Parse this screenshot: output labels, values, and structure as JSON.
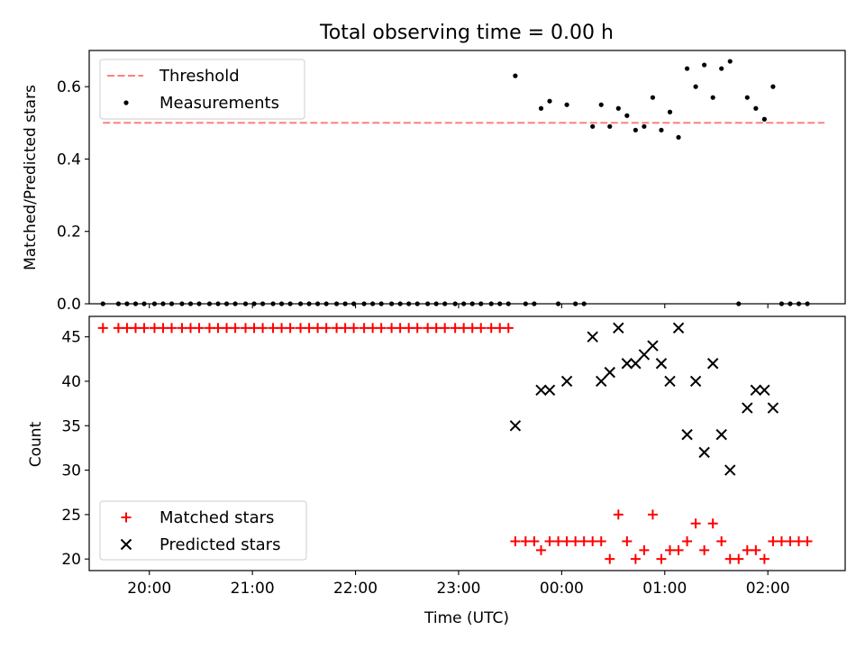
{
  "chart_data": [
    {
      "type": "scatter",
      "title": "Total observing time = 0.00 h",
      "xlabel": "",
      "ylabel": "Matched/Predicted stars",
      "x_unit": "time (UTC, hours; values >= 24 are after midnight)",
      "xlim": [
        "19:25",
        "02:45"
      ],
      "ylim": [
        0,
        0.7
      ],
      "yticks": [
        "0.0",
        "0.2",
        "0.4",
        "0.6"
      ],
      "xticks": [
        "20:00",
        "21:00",
        "22:00",
        "23:00",
        "00:00",
        "01:00",
        "02:00"
      ],
      "show_xtick_labels": false,
      "grid": false,
      "legend": "top-left",
      "legend_entries": [
        "Threshold",
        "Measurements"
      ],
      "threshold": {
        "name": "Threshold",
        "value": 0.5,
        "x_range": [
          "19:33",
          "02:33"
        ],
        "color": "#ff7f7f",
        "style": "dashed"
      },
      "series": [
        {
          "name": "Measurements",
          "color": "#000000",
          "marker": "dot",
          "points": [
            [
              "19:33",
              0
            ],
            [
              "19:42",
              0
            ],
            [
              "19:47",
              0
            ],
            [
              "19:52",
              0
            ],
            [
              "19:57",
              0
            ],
            [
              "20:03",
              0
            ],
            [
              "20:08",
              0
            ],
            [
              "20:13",
              0
            ],
            [
              "20:19",
              0
            ],
            [
              "20:24",
              0
            ],
            [
              "20:29",
              0
            ],
            [
              "20:35",
              0
            ],
            [
              "20:40",
              0
            ],
            [
              "20:45",
              0
            ],
            [
              "20:50",
              0
            ],
            [
              "20:56",
              0
            ],
            [
              "21:01",
              0
            ],
            [
              "21:06",
              0
            ],
            [
              "21:12",
              0
            ],
            [
              "21:17",
              0
            ],
            [
              "21:22",
              0
            ],
            [
              "21:28",
              0
            ],
            [
              "21:33",
              0
            ],
            [
              "21:38",
              0
            ],
            [
              "21:43",
              0
            ],
            [
              "21:49",
              0
            ],
            [
              "21:54",
              0
            ],
            [
              "21:59",
              0
            ],
            [
              "22:05",
              0
            ],
            [
              "22:10",
              0
            ],
            [
              "22:15",
              0
            ],
            [
              "22:21",
              0
            ],
            [
              "22:26",
              0
            ],
            [
              "22:31",
              0
            ],
            [
              "22:36",
              0
            ],
            [
              "22:42",
              0
            ],
            [
              "22:47",
              0
            ],
            [
              "22:52",
              0
            ],
            [
              "22:58",
              0
            ],
            [
              "23:03",
              0
            ],
            [
              "23:08",
              0
            ],
            [
              "23:13",
              0
            ],
            [
              "23:19",
              0
            ],
            [
              "23:24",
              0
            ],
            [
              "23:29",
              0
            ],
            [
              "23:33",
              0.63
            ],
            [
              "23:39",
              0
            ],
            [
              "23:44",
              0
            ],
            [
              "23:48",
              0.54
            ],
            [
              "23:53",
              0.56
            ],
            [
              "23:58",
              0
            ],
            [
              "00:03",
              0.55
            ],
            [
              "00:08",
              0
            ],
            [
              "00:13",
              0
            ],
            [
              "00:18",
              0.49
            ],
            [
              "00:23",
              0.55
            ],
            [
              "00:28",
              0.49
            ],
            [
              "00:33",
              0.54
            ],
            [
              "00:38",
              0.52
            ],
            [
              "00:43",
              0.48
            ],
            [
              "00:48",
              0.49
            ],
            [
              "00:53",
              0.57
            ],
            [
              "00:58",
              0.48
            ],
            [
              "01:03",
              0.53
            ],
            [
              "01:08",
              0.46
            ],
            [
              "01:13",
              0.65
            ],
            [
              "01:18",
              0.6
            ],
            [
              "01:23",
              0.66
            ],
            [
              "01:28",
              0.57
            ],
            [
              "01:33",
              0.65
            ],
            [
              "01:38",
              0.67
            ],
            [
              "01:43",
              0
            ],
            [
              "01:48",
              0.57
            ],
            [
              "01:53",
              0.54
            ],
            [
              "01:58",
              0.51
            ],
            [
              "02:03",
              0.6
            ],
            [
              "02:08",
              0
            ],
            [
              "02:13",
              0
            ],
            [
              "02:18",
              0
            ],
            [
              "02:23",
              0
            ]
          ]
        }
      ]
    },
    {
      "type": "scatter",
      "title": "",
      "xlabel": "Time (UTC)",
      "ylabel": "Count",
      "x_unit": "time (UTC, hours; values >= 24 are after midnight)",
      "xlim": [
        "19:25",
        "02:45"
      ],
      "ylim": [
        18.7,
        47.3
      ],
      "yticks": [
        "20",
        "25",
        "30",
        "35",
        "40",
        "45"
      ],
      "xticks": [
        "20:00",
        "21:00",
        "22:00",
        "23:00",
        "00:00",
        "01:00",
        "02:00"
      ],
      "show_xtick_labels": true,
      "grid": false,
      "legend": "bottom-left",
      "legend_entries": [
        "Matched stars",
        "Predicted stars"
      ],
      "series": [
        {
          "name": "Matched stars",
          "color": "#ff0000",
          "marker": "plus",
          "points": [
            [
              "19:33",
              46
            ],
            [
              "19:42",
              46
            ],
            [
              "19:47",
              46
            ],
            [
              "19:52",
              46
            ],
            [
              "19:57",
              46
            ],
            [
              "20:03",
              46
            ],
            [
              "20:08",
              46
            ],
            [
              "20:13",
              46
            ],
            [
              "20:19",
              46
            ],
            [
              "20:24",
              46
            ],
            [
              "20:29",
              46
            ],
            [
              "20:35",
              46
            ],
            [
              "20:40",
              46
            ],
            [
              "20:45",
              46
            ],
            [
              "20:50",
              46
            ],
            [
              "20:56",
              46
            ],
            [
              "21:01",
              46
            ],
            [
              "21:06",
              46
            ],
            [
              "21:12",
              46
            ],
            [
              "21:17",
              46
            ],
            [
              "21:22",
              46
            ],
            [
              "21:28",
              46
            ],
            [
              "21:33",
              46
            ],
            [
              "21:38",
              46
            ],
            [
              "21:43",
              46
            ],
            [
              "21:49",
              46
            ],
            [
              "21:54",
              46
            ],
            [
              "21:59",
              46
            ],
            [
              "22:05",
              46
            ],
            [
              "22:10",
              46
            ],
            [
              "22:15",
              46
            ],
            [
              "22:21",
              46
            ],
            [
              "22:26",
              46
            ],
            [
              "22:31",
              46
            ],
            [
              "22:36",
              46
            ],
            [
              "22:42",
              46
            ],
            [
              "22:47",
              46
            ],
            [
              "22:52",
              46
            ],
            [
              "22:58",
              46
            ],
            [
              "23:03",
              46
            ],
            [
              "23:08",
              46
            ],
            [
              "23:13",
              46
            ],
            [
              "23:19",
              46
            ],
            [
              "23:24",
              46
            ],
            [
              "23:29",
              46
            ],
            [
              "23:33",
              22
            ],
            [
              "23:39",
              22
            ],
            [
              "23:44",
              22
            ],
            [
              "23:48",
              21
            ],
            [
              "23:53",
              22
            ],
            [
              "23:58",
              22
            ],
            [
              "00:03",
              22
            ],
            [
              "00:08",
              22
            ],
            [
              "00:13",
              22
            ],
            [
              "00:18",
              22
            ],
            [
              "00:23",
              22
            ],
            [
              "00:28",
              20
            ],
            [
              "00:33",
              25
            ],
            [
              "00:38",
              22
            ],
            [
              "00:43",
              20
            ],
            [
              "00:48",
              21
            ],
            [
              "00:53",
              25
            ],
            [
              "00:58",
              20
            ],
            [
              "01:03",
              21
            ],
            [
              "01:08",
              21
            ],
            [
              "01:13",
              22
            ],
            [
              "01:18",
              24
            ],
            [
              "01:23",
              21
            ],
            [
              "01:28",
              24
            ],
            [
              "01:33",
              22
            ],
            [
              "01:38",
              20
            ],
            [
              "01:43",
              20
            ],
            [
              "01:48",
              21
            ],
            [
              "01:53",
              21
            ],
            [
              "01:58",
              20
            ],
            [
              "02:03",
              22
            ],
            [
              "02:08",
              22
            ],
            [
              "02:13",
              22
            ],
            [
              "02:18",
              22
            ],
            [
              "02:23",
              22
            ]
          ]
        },
        {
          "name": "Predicted stars",
          "color": "#000000",
          "marker": "x",
          "points": [
            [
              "23:33",
              35
            ],
            [
              "23:48",
              39
            ],
            [
              "23:53",
              39
            ],
            [
              "00:03",
              40
            ],
            [
              "00:18",
              45
            ],
            [
              "00:23",
              40
            ],
            [
              "00:28",
              41
            ],
            [
              "00:33",
              46
            ],
            [
              "00:38",
              42
            ],
            [
              "00:43",
              42
            ],
            [
              "00:48",
              43
            ],
            [
              "00:53",
              44
            ],
            [
              "00:58",
              42
            ],
            [
              "01:03",
              40
            ],
            [
              "01:08",
              46
            ],
            [
              "01:13",
              34
            ],
            [
              "01:18",
              40
            ],
            [
              "01:23",
              32
            ],
            [
              "01:28",
              42
            ],
            [
              "01:33",
              34
            ],
            [
              "01:38",
              30
            ],
            [
              "01:48",
              37
            ],
            [
              "01:53",
              39
            ],
            [
              "01:58",
              39
            ],
            [
              "02:03",
              37
            ]
          ]
        }
      ]
    }
  ]
}
